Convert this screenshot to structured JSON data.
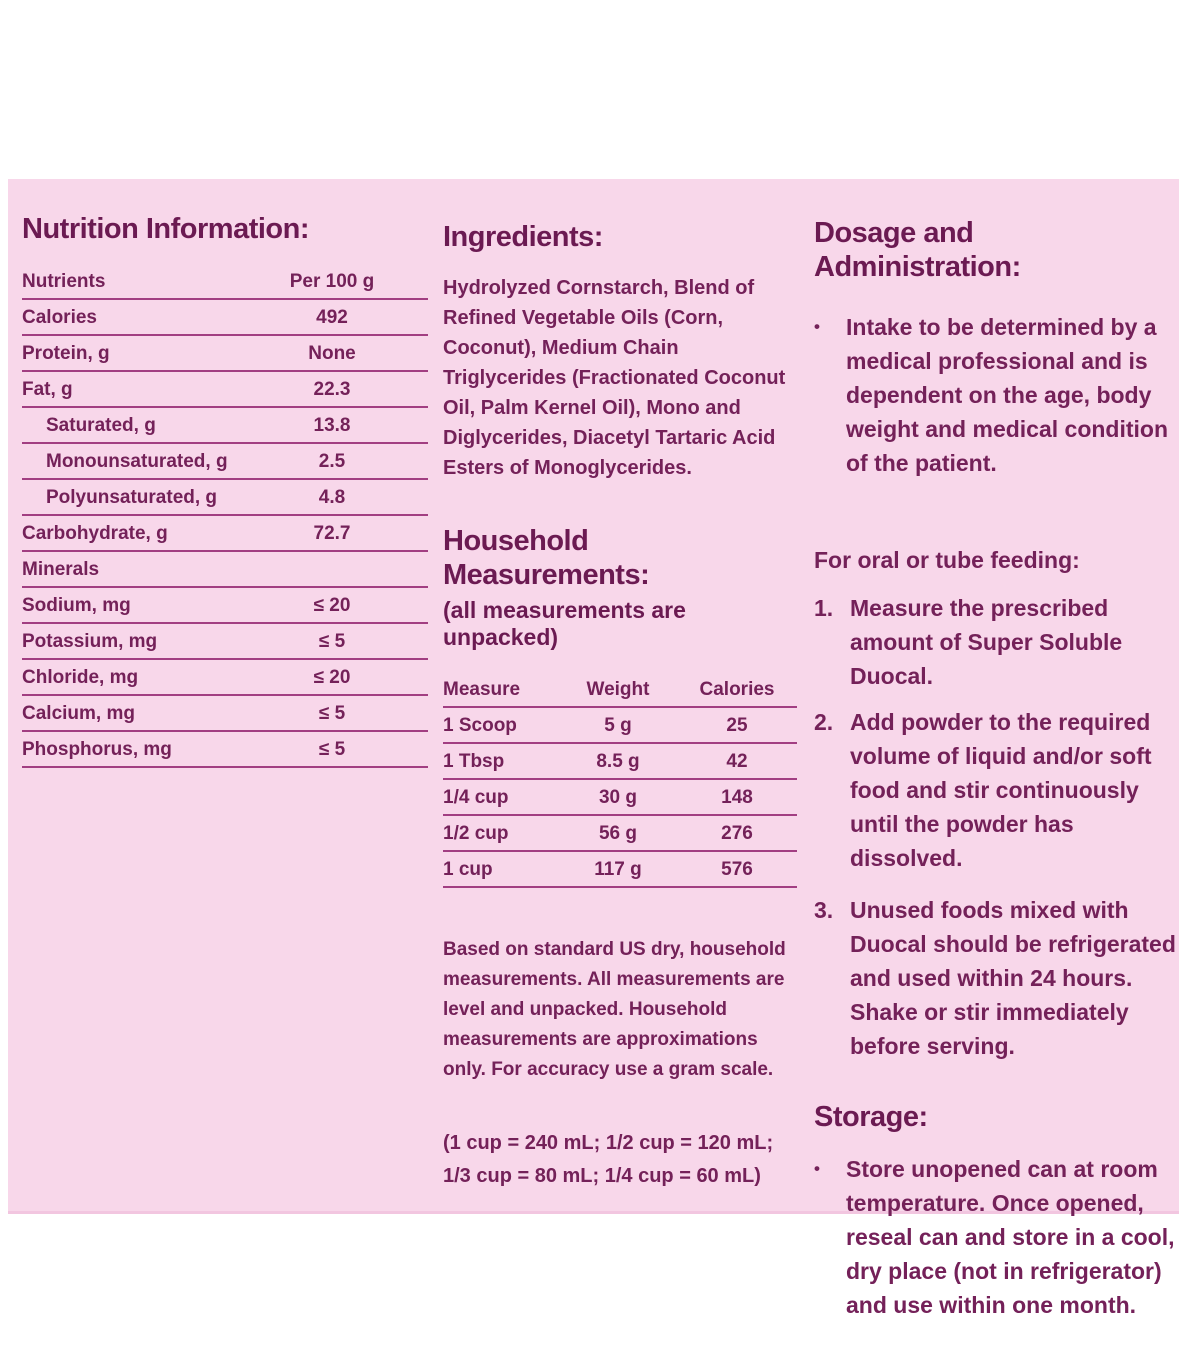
{
  "colors": {
    "panel_bg": "#f8d7ea",
    "text": "#742159",
    "heading": "#6b1a52",
    "rule": "#a23e82"
  },
  "bullet_char": "•",
  "nutrition": {
    "title": "Nutrition Information:",
    "table": {
      "header_label": "Nutrients",
      "header_value": "Per 100 g",
      "rows": [
        {
          "label": "Calories",
          "value": "492",
          "indent": false
        },
        {
          "label": "Protein, g",
          "value": "None",
          "indent": false
        },
        {
          "label": "Fat, g",
          "value": "22.3",
          "indent": false
        },
        {
          "label": "Saturated, g",
          "value": "13.8",
          "indent": true
        },
        {
          "label": "Monounsaturated, g",
          "value": "2.5",
          "indent": true
        },
        {
          "label": "Polyunsaturated, g",
          "value": "4.8",
          "indent": true
        },
        {
          "label": "Carbohydrate, g",
          "value": "72.7",
          "indent": false
        },
        {
          "label": "Minerals",
          "value": "",
          "indent": false
        },
        {
          "label": "Sodium, mg",
          "value": "≤ 20",
          "indent": false
        },
        {
          "label": "Potassium, mg",
          "value": "≤ 5",
          "indent": false
        },
        {
          "label": "Chloride, mg",
          "value": "≤ 20",
          "indent": false
        },
        {
          "label": "Calcium, mg",
          "value": "≤ 5",
          "indent": false
        },
        {
          "label": "Phosphorus, mg",
          "value": "≤ 5",
          "indent": false
        }
      ]
    }
  },
  "ingredients": {
    "title": "Ingredients:",
    "text": "Hydrolyzed Cornstarch, Blend of Refined Vegetable Oils (Corn, Coconut), Medium Chain Triglycerides (Fractionated Coconut Oil, Palm Kernel Oil), Mono and Diglycerides, Diacetyl Tartaric Acid Esters of Monoglycerides."
  },
  "household": {
    "title": "Household Measurements:",
    "subtitle": "(all measurements are unpacked)",
    "table": {
      "col_headers": [
        "Measure",
        "Weight",
        "Calories"
      ],
      "rows": [
        {
          "measure": "1 Scoop",
          "weight": "5 g",
          "calories": "25"
        },
        {
          "measure": "1 Tbsp",
          "weight": "8.5 g",
          "calories": "42"
        },
        {
          "measure": "1/4 cup",
          "weight": "30 g",
          "calories": "148"
        },
        {
          "measure": "1/2 cup",
          "weight": "56 g",
          "calories": "276"
        },
        {
          "measure": "1 cup",
          "weight": "117 g",
          "calories": "576"
        }
      ]
    },
    "note": "Based on standard US dry, household measurements. All measurements are level and unpacked. Household measurements are approximations only. For accuracy use a gram scale.",
    "equivalents": "(1 cup = 240 mL;  1/2 cup = 120 mL; 1/3 cup = 80 mL;  1/4 cup = 60 mL)"
  },
  "dosage": {
    "title": "Dosage and Administration:",
    "bullet": "Intake to be determined by a medical professional and is dependent on the age, body weight and medical condition of the patient.",
    "feeding_heading": "For oral or tube feeding:",
    "step_numbers": [
      "1.",
      "2.",
      "3."
    ],
    "steps": [
      "Measure the prescribed amount of Super Soluble Duocal.",
      "Add powder to the required volume of liquid and/or soft food and stir continuously until the powder has dissolved.",
      "Unused foods mixed with Duocal should be refrigerated and used within 24 hours.  Shake or stir immediately before serving."
    ]
  },
  "storage": {
    "title": "Storage:",
    "bullet": "Store unopened can at room temperature.  Once opened, reseal can and store in a cool, dry place (not in refrigerator) and use within one month."
  }
}
